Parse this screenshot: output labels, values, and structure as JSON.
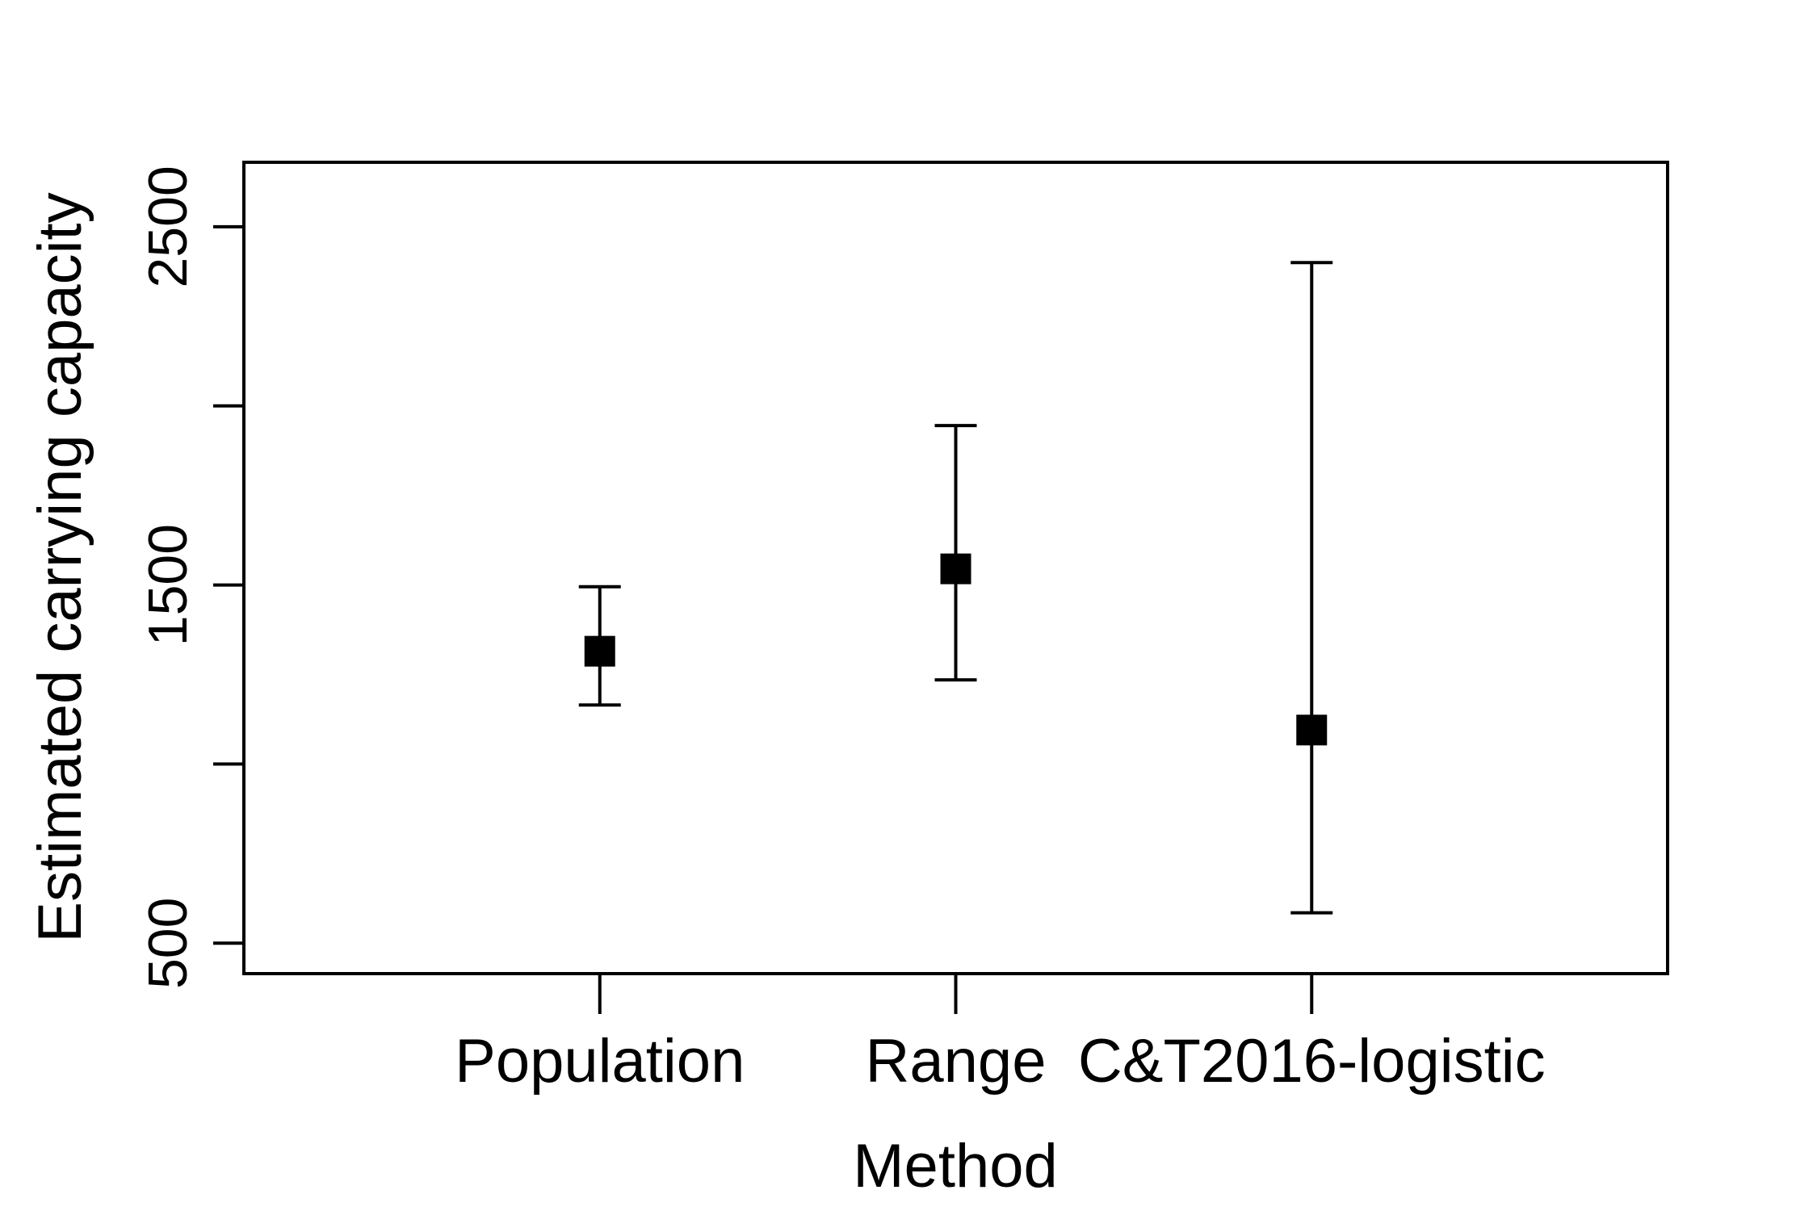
{
  "chart_data": {
    "type": "errorbar",
    "title": "",
    "xlabel": "Method",
    "ylabel": "Estimated carrying capacity",
    "categories": [
      "Population",
      "Range",
      "C&T2016-logistic"
    ],
    "series": [
      {
        "estimate": [
          1315,
          1545,
          1095
        ],
        "lower": [
          1165,
          1235,
          585
        ],
        "upper": [
          1495,
          1945,
          2400
        ]
      }
    ],
    "y_ticks": [
      500,
      1000,
      1500,
      2000,
      2500
    ],
    "y_tick_labels": [
      "500",
      "",
      "1500",
      "",
      "2500"
    ],
    "ylim": [
      415,
      2680
    ],
    "grid": false,
    "legend": "none",
    "marker": "filled-square",
    "color": "#000000"
  }
}
